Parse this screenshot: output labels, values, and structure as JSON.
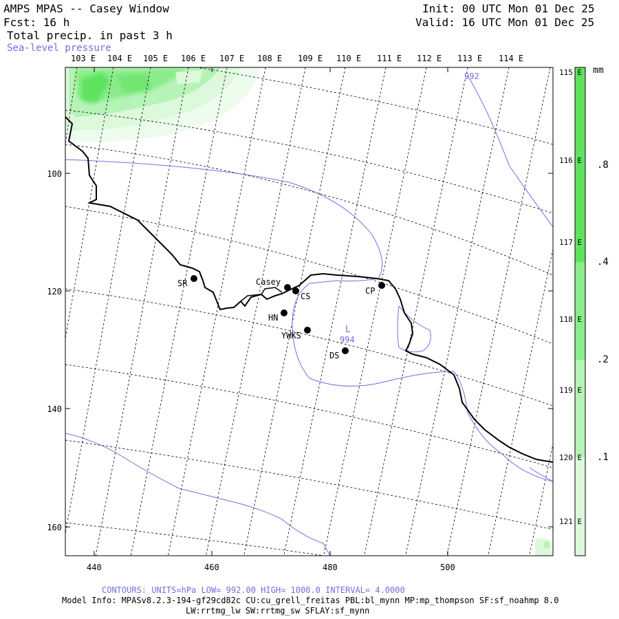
{
  "header": {
    "title": "AMPS MPAS -- Casey Window",
    "fcst": "Fcst:    16 h",
    "field1": "Total precip. in past 3 h",
    "field2": "Sea-level pressure",
    "init": "Init: 00 UTC Mon 01 Dec 25",
    "valid": "Valid: 16 UTC Mon 01 Dec 25"
  },
  "lon_labels": [
    "103 E",
    "104 E",
    "105 E",
    "106 E",
    "107 E",
    "108 E",
    "109 E",
    "110 E",
    "111 E",
    "112 E",
    "113 E",
    "114 E"
  ],
  "right_lon_labels": [
    "115 E",
    "116 E",
    "117 E",
    "118 E",
    "119 E",
    "120 E",
    "121 E"
  ],
  "y_axis": [
    "100",
    "120",
    "140",
    "160"
  ],
  "x_axis": [
    "440",
    "460",
    "480",
    "500"
  ],
  "stations": [
    {
      "id": "SR",
      "label": "SR"
    },
    {
      "id": "Casey",
      "label": "Casey"
    },
    {
      "id": "CS",
      "label": "CS"
    },
    {
      "id": "HN",
      "label": "HN"
    },
    {
      "id": "YWKS",
      "label": "YWKS"
    },
    {
      "id": "DS",
      "label": "DS"
    },
    {
      "id": "CP",
      "label": "CP"
    }
  ],
  "pressure": {
    "low_symbol": "L",
    "low_value": "994",
    "contour_label": "992"
  },
  "colorbar": {
    "unit": "mm",
    "labels": [
      ".8",
      ".4",
      ".2",
      ".1"
    ],
    "colors": [
      "#5fe35f",
      "#8aec8a",
      "#b6f3b6",
      "#dcf9dc",
      "#f2fdf2"
    ]
  },
  "footer": {
    "contours": "CONTOURS:  UNITS=hPa  LOW=  992.00       HIGH=  1000.0      INTERVAL=   4.0000",
    "model_info": "Model Info: MPASv8.2.3-194-gf29cd82c CU:cu_grell_freitas PBL:bl_mynn MP:mp_thompson SF:sf_noahmp 8.0",
    "model_info2": "LW:rrtmg_lw SW:rrtmg_sw SFLAY:sf_mynn"
  }
}
